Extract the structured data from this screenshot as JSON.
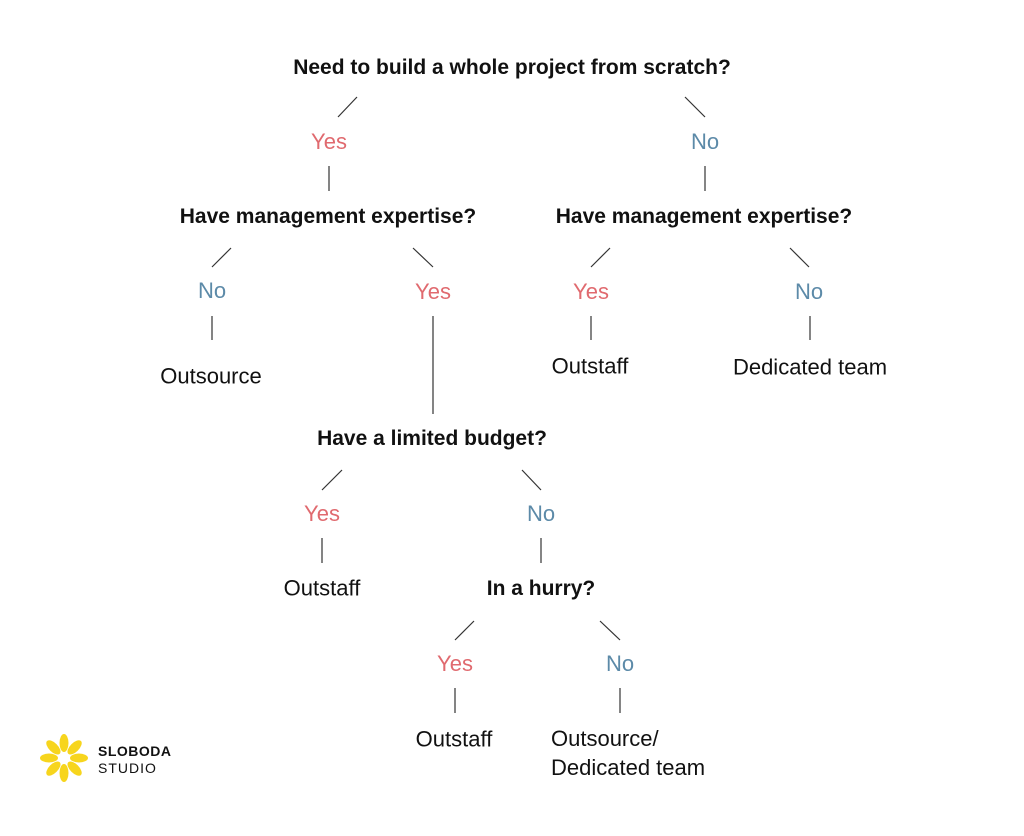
{
  "questions": {
    "q1": "Need to build a whole project from scratch?",
    "q2_left": "Have management expertise?",
    "q2_right": "Have management expertise?",
    "q3": "Have a limited budget?",
    "q4": "In a hurry?"
  },
  "answers": {
    "yes": "Yes",
    "no": "No"
  },
  "results": {
    "r_outsource": "Outsource",
    "r_outstaff_right": "Outstaff",
    "r_dedicated": "Dedicated team",
    "r_outstaff_budget": "Outstaff",
    "r_outstaff_hurry": "Outstaff",
    "r_outsource_dedicated_line1": "Outsource/",
    "r_outsource_dedicated_line2": "Dedicated team"
  },
  "logo": {
    "line1": "SLOBODA",
    "line2": "STUDIO",
    "color": "#f7d51d"
  },
  "colors": {
    "yes": "#e06a6f",
    "no": "#5c8aa8",
    "text": "#111111"
  }
}
